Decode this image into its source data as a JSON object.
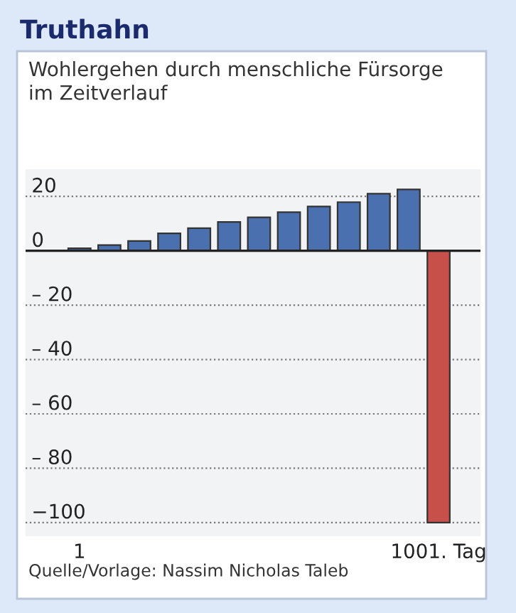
{
  "chart_data": {
    "type": "bar",
    "title": "Truthahn",
    "subtitle": "Wohlergehen durch menschliche Fürsorge\nim Zeitverlauf",
    "categories": [
      "1",
      null,
      null,
      null,
      null,
      null,
      null,
      null,
      null,
      null,
      null,
      null,
      "1001. Tag"
    ],
    "values": [
      0.9,
      2.1,
      3.6,
      6.4,
      8.3,
      10.6,
      12.3,
      14.2,
      16.3,
      17.9,
      21,
      22.6,
      -100
    ],
    "colors": [
      "#4a70b0",
      "#4a70b0",
      "#4a70b0",
      "#4a70b0",
      "#4a70b0",
      "#4a70b0",
      "#4a70b0",
      "#4a70b0",
      "#4a70b0",
      "#4a70b0",
      "#4a70b0",
      "#4a70b0",
      "#c8504a"
    ],
    "ylim": [
      -105,
      30
    ],
    "yticks": [
      20,
      0,
      {
        "value": -20,
        "label": "– 20"
      },
      {
        "value": -40,
        "label": "– 40"
      },
      {
        "value": -60,
        "label": "– 60"
      },
      {
        "value": -80,
        "label": "– 80"
      },
      {
        "value": -100,
        "label": "−100"
      }
    ],
    "grid": "y",
    "annotations": [
      "Quelle/Vorlage: Nassim Nicholas Taleb"
    ]
  }
}
